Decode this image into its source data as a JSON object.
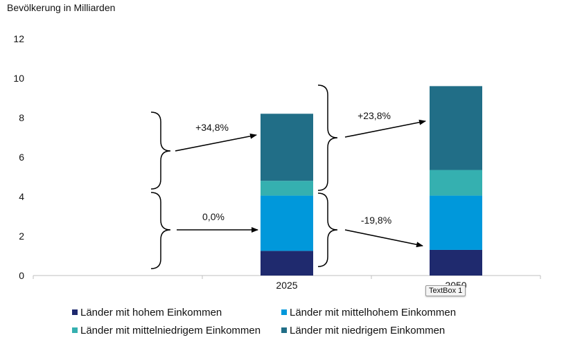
{
  "chart_data": {
    "type": "bar",
    "stacked": true,
    "ylabel": "Bevölkerung in Milliarden",
    "ylim": [
      0,
      12
    ],
    "yticks": [
      0,
      2,
      4,
      6,
      8,
      10,
      12
    ],
    "categories": [
      "",
      "2025",
      "2050"
    ],
    "series": [
      {
        "name": "Länder mit hohem Einkommen",
        "color": "#1f2a6e",
        "values": [
          null,
          1.25,
          1.3
        ]
      },
      {
        "name": "Länder mit mittelhohem Einkommen",
        "color": "#0098db",
        "values": [
          null,
          2.8,
          2.75
        ]
      },
      {
        "name": "Länder mit mittelniedrigem Einkommen",
        "color": "#35b0b0",
        "values": [
          null,
          0.75,
          1.3
        ]
      },
      {
        "name": "Länder mit niedrigem Einkommen",
        "color": "#216e87",
        "values": [
          null,
          3.4,
          4.25
        ]
      }
    ],
    "annotations": [
      {
        "text": "+34,8%"
      },
      {
        "text": "0,0%"
      },
      {
        "text": "+23,8%"
      },
      {
        "text": "-19,8%"
      }
    ],
    "legend_position": "bottom",
    "grid": false
  },
  "tooltip": {
    "text": "TextBox 1"
  }
}
